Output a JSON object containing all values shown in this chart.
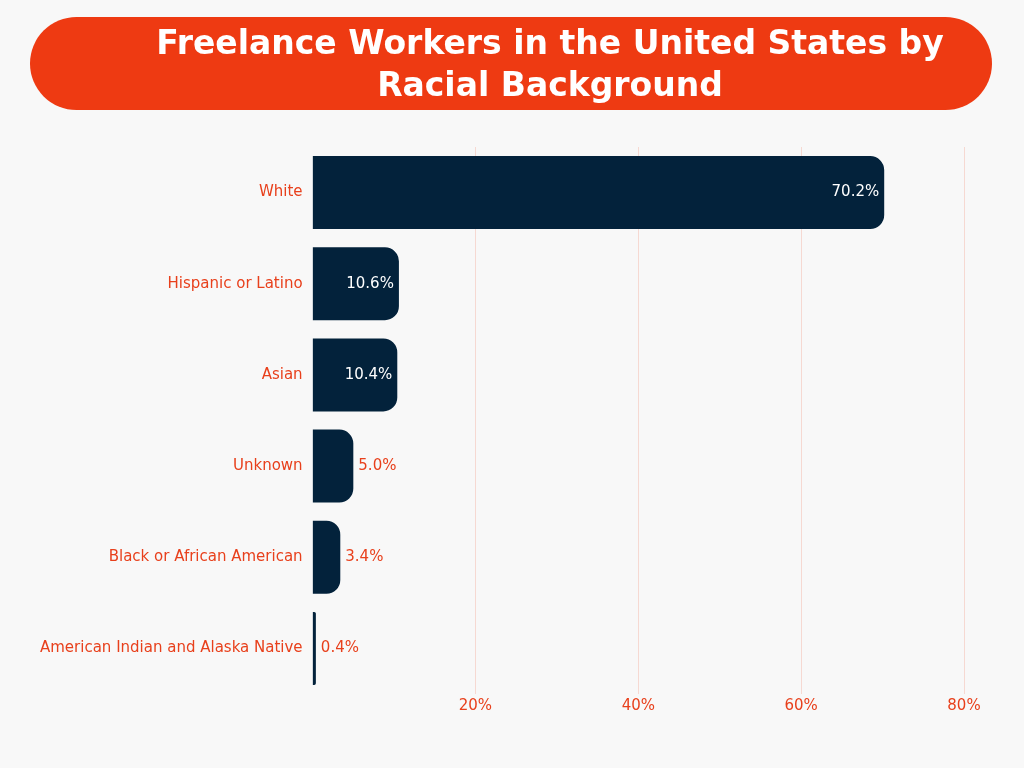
{
  "chart_data": {
    "type": "bar",
    "orientation": "horizontal",
    "title": "Freelance Workers in the United States by Racial Background",
    "categories": [
      "White",
      "Hispanic or Latino",
      "Asian",
      "Unknown",
      "Black or African American",
      "American Indian and Alaska Native"
    ],
    "values": [
      70.2,
      10.6,
      10.4,
      5.0,
      3.4,
      0.4
    ],
    "value_labels": [
      "70.2%",
      "10.6%",
      "10.4%",
      "5.0%",
      "3.4%",
      "0.4%"
    ],
    "color": "#03223b",
    "xlim": [
      0,
      80
    ],
    "xticks": [
      {
        "value": 20,
        "label": "20%"
      },
      {
        "value": 40,
        "label": "40%"
      },
      {
        "value": 60,
        "label": "60%"
      },
      {
        "value": 80,
        "label": "80%"
      }
    ],
    "grid": "x",
    "legend": false
  }
}
